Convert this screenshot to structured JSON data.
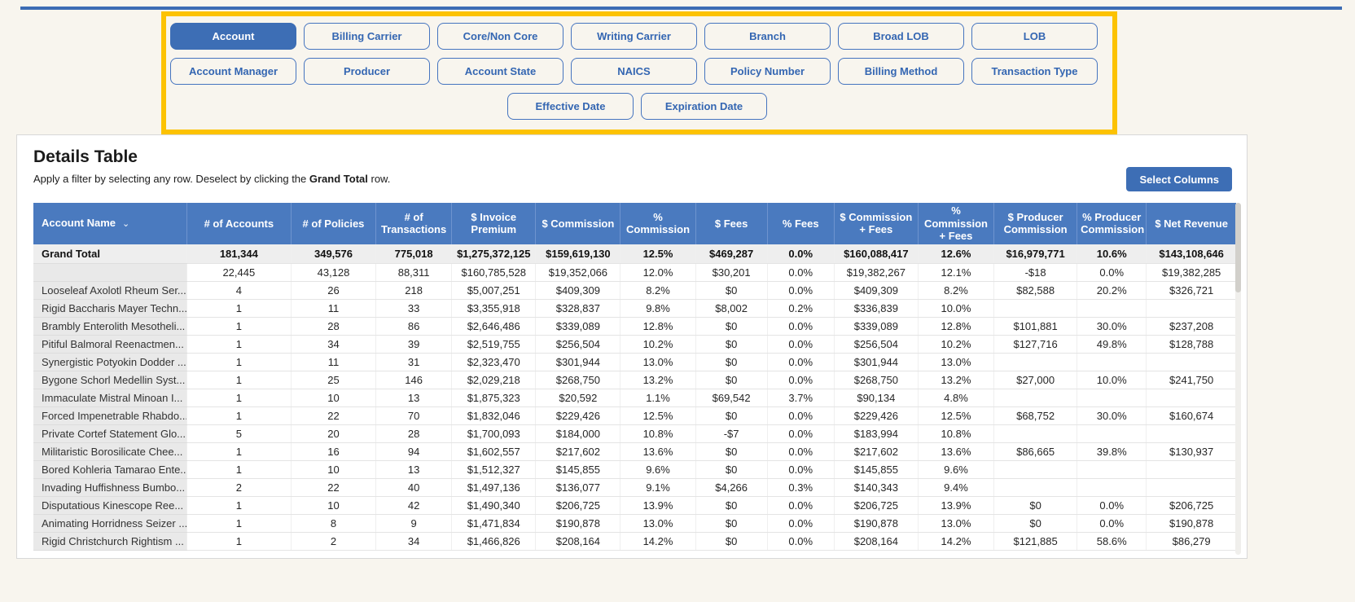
{
  "top": {
    "accent_line_color": "#3c6cb4"
  },
  "filters": {
    "selected": "Account",
    "border_color": "#fcc203",
    "rows": [
      [
        "Account",
        "Billing Carrier",
        "Core/Non Core",
        "Writing Carrier",
        "Branch",
        "Broad LOB",
        "LOB"
      ],
      [
        "Account Manager",
        "Producer",
        "Account State",
        "NAICS",
        "Policy Number",
        "Billing Method",
        "Transaction Type"
      ],
      [
        "Effective Date",
        "Expiration Date"
      ]
    ]
  },
  "panel": {
    "title": "Details Table",
    "subtitle_prefix": "Apply a filter by selecting any row. Deselect by clicking the ",
    "subtitle_bold": "Grand Total",
    "subtitle_suffix": " row.",
    "select_columns_label": "Select Columns"
  },
  "table": {
    "header_color": "#4a7abf",
    "sort_column": "Account Name",
    "columns": [
      "Account Name",
      "# of Accounts",
      "# of Policies",
      "# of Transactions",
      "$ Invoice Premium",
      "$ Commission",
      "% Commission",
      "$ Fees",
      "% Fees",
      "$ Commission + Fees",
      "% Commission + Fees",
      "$ Producer Commission",
      "% Producer Commission",
      "$ Net Revenue"
    ],
    "grand_total": [
      "Grand Total",
      "181,344",
      "349,576",
      "775,018",
      "$1,275,372,125",
      "$159,619,130",
      "12.5%",
      "$469,287",
      "0.0%",
      "$160,088,417",
      "12.6%",
      "$16,979,771",
      "10.6%",
      "$143,108,646"
    ],
    "rows": [
      [
        "",
        "22,445",
        "43,128",
        "88,311",
        "$160,785,528",
        "$19,352,066",
        "12.0%",
        "$30,201",
        "0.0%",
        "$19,382,267",
        "12.1%",
        "-$18",
        "0.0%",
        "$19,382,285"
      ],
      [
        "Looseleaf Axolotl Rheum Ser...",
        "4",
        "26",
        "218",
        "$5,007,251",
        "$409,309",
        "8.2%",
        "$0",
        "0.0%",
        "$409,309",
        "8.2%",
        "$82,588",
        "20.2%",
        "$326,721"
      ],
      [
        "Rigid Baccharis Mayer Techn...",
        "1",
        "11",
        "33",
        "$3,355,918",
        "$328,837",
        "9.8%",
        "$8,002",
        "0.2%",
        "$336,839",
        "10.0%",
        "",
        "",
        ""
      ],
      [
        "Brambly Enterolith Mesotheli...",
        "1",
        "28",
        "86",
        "$2,646,486",
        "$339,089",
        "12.8%",
        "$0",
        "0.0%",
        "$339,089",
        "12.8%",
        "$101,881",
        "30.0%",
        "$237,208"
      ],
      [
        "Pitiful Balmoral Reenactmen...",
        "1",
        "34",
        "39",
        "$2,519,755",
        "$256,504",
        "10.2%",
        "$0",
        "0.0%",
        "$256,504",
        "10.2%",
        "$127,716",
        "49.8%",
        "$128,788"
      ],
      [
        "Synergistic Potyokin Dodder ...",
        "1",
        "11",
        "31",
        "$2,323,470",
        "$301,944",
        "13.0%",
        "$0",
        "0.0%",
        "$301,944",
        "13.0%",
        "",
        "",
        ""
      ],
      [
        "Bygone Schorl Medellin Syst...",
        "1",
        "25",
        "146",
        "$2,029,218",
        "$268,750",
        "13.2%",
        "$0",
        "0.0%",
        "$268,750",
        "13.2%",
        "$27,000",
        "10.0%",
        "$241,750"
      ],
      [
        "Immaculate Mistral Minoan I...",
        "1",
        "10",
        "13",
        "$1,875,323",
        "$20,592",
        "1.1%",
        "$69,542",
        "3.7%",
        "$90,134",
        "4.8%",
        "",
        "",
        ""
      ],
      [
        "Forced Impenetrable Rhabdo...",
        "1",
        "22",
        "70",
        "$1,832,046",
        "$229,426",
        "12.5%",
        "$0",
        "0.0%",
        "$229,426",
        "12.5%",
        "$68,752",
        "30.0%",
        "$160,674"
      ],
      [
        "Private Cortef Statement Glo...",
        "5",
        "20",
        "28",
        "$1,700,093",
        "$184,000",
        "10.8%",
        "-$7",
        "0.0%",
        "$183,994",
        "10.8%",
        "",
        "",
        ""
      ],
      [
        "Militaristic Borosilicate Chee...",
        "1",
        "16",
        "94",
        "$1,602,557",
        "$217,602",
        "13.6%",
        "$0",
        "0.0%",
        "$217,602",
        "13.6%",
        "$86,665",
        "39.8%",
        "$130,937"
      ],
      [
        "Bored Kohleria Tamarao Ente...",
        "1",
        "10",
        "13",
        "$1,512,327",
        "$145,855",
        "9.6%",
        "$0",
        "0.0%",
        "$145,855",
        "9.6%",
        "",
        "",
        ""
      ],
      [
        "Invading Huffishness Bumbo...",
        "2",
        "22",
        "40",
        "$1,497,136",
        "$136,077",
        "9.1%",
        "$4,266",
        "0.3%",
        "$140,343",
        "9.4%",
        "",
        "",
        ""
      ],
      [
        "Disputatious Kinescope Ree...",
        "1",
        "10",
        "42",
        "$1,490,340",
        "$206,725",
        "13.9%",
        "$0",
        "0.0%",
        "$206,725",
        "13.9%",
        "$0",
        "0.0%",
        "$206,725"
      ],
      [
        "Animating Horridness Seizer ...",
        "1",
        "8",
        "9",
        "$1,471,834",
        "$190,878",
        "13.0%",
        "$0",
        "0.0%",
        "$190,878",
        "13.0%",
        "$0",
        "0.0%",
        "$190,878"
      ],
      [
        "Rigid Christchurch Rightism ...",
        "1",
        "2",
        "34",
        "$1,466,826",
        "$208,164",
        "14.2%",
        "$0",
        "0.0%",
        "$208,164",
        "14.2%",
        "$121,885",
        "58.6%",
        "$86,279"
      ]
    ]
  }
}
